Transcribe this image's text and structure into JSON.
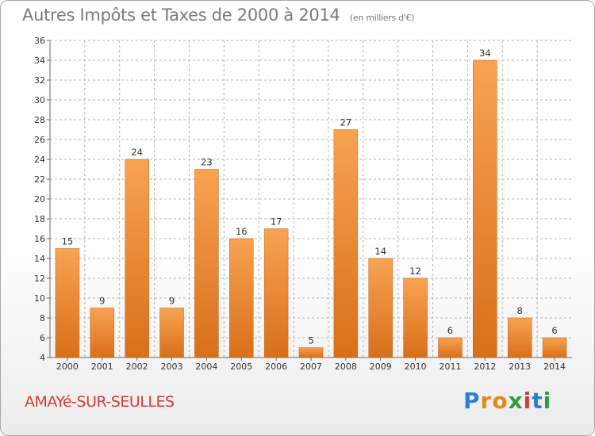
{
  "header": {
    "title": "Autres Impôts et Taxes de 2000 à 2014",
    "unit": "(en milliers d'€)"
  },
  "footer": {
    "commune": "AMAYé-SUR-SEULLES",
    "logo": {
      "letters": [
        "P",
        "r",
        "o",
        "x",
        "i",
        "t",
        "i"
      ],
      "colors": [
        "#2b7fd0",
        "#e08a1a",
        "#e08a1a",
        "#2f9d3a",
        "#d23b3b",
        "#2b7fd0",
        "#2f9d3a"
      ]
    }
  },
  "chart_data": {
    "type": "bar",
    "title": "Autres Impôts et Taxes de 2000 à 2014",
    "subtitle": "(en milliers d'€)",
    "xlabel": "",
    "ylabel": "",
    "categories": [
      "2000",
      "2001",
      "2002",
      "2003",
      "2004",
      "2005",
      "2006",
      "2007",
      "2008",
      "2009",
      "2010",
      "2011",
      "2012",
      "2013",
      "2014"
    ],
    "values": [
      15,
      9,
      24,
      9,
      23,
      16,
      17,
      5,
      27,
      14,
      12,
      6,
      34,
      8,
      6
    ],
    "ylim": [
      4,
      36
    ],
    "yticks": [
      4,
      6,
      8,
      10,
      12,
      14,
      16,
      18,
      20,
      22,
      24,
      26,
      28,
      30,
      32,
      34,
      36
    ],
    "grid": true,
    "colors": {
      "bar_light": "#f7a352",
      "bar_dark": "#d96f1a",
      "grid": "#b5b5b5",
      "axis": "#666666"
    }
  }
}
